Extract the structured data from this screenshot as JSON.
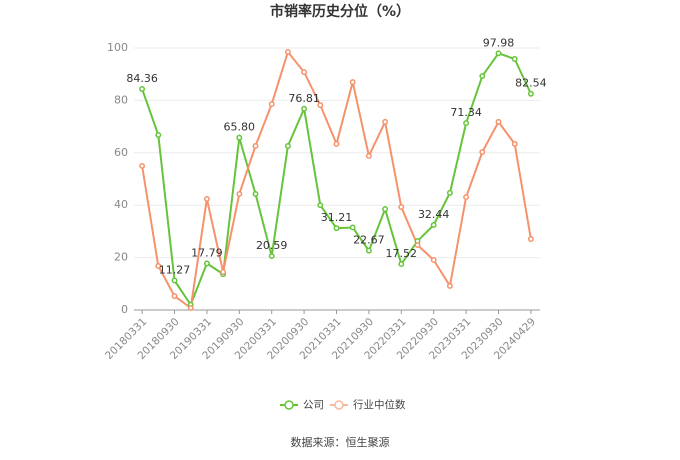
{
  "chart_data": {
    "type": "line",
    "title": "市销率历史分位（%）",
    "categories": [
      "20180331",
      null,
      "20180930",
      null,
      "20190331",
      null,
      "20190930",
      null,
      "20200331",
      null,
      "20200930",
      null,
      "20210331",
      null,
      "20210930",
      null,
      "20220331",
      null,
      "20220930",
      null,
      "20230331",
      null,
      "20230930",
      null,
      "20240429"
    ],
    "series": [
      {
        "name": "公司",
        "color": "#66c43a",
        "values": [
          84.36,
          66.8,
          11.27,
          2,
          17.79,
          13.7,
          65.8,
          44.3,
          20.59,
          62.6,
          76.81,
          40,
          31.21,
          31.5,
          22.67,
          38.5,
          17.52,
          26.3,
          32.44,
          44.7,
          71.34,
          89.3,
          97.98,
          95.8,
          82.54
        ],
        "value_labels": [
          "84.36",
          null,
          "11.27",
          null,
          "17.79",
          null,
          "65.80",
          null,
          "20.59",
          null,
          "76.81",
          null,
          "31.21",
          null,
          "22.67",
          null,
          "17.52",
          null,
          "32.44",
          null,
          "71.34",
          null,
          "97.98",
          null,
          "82.54"
        ]
      },
      {
        "name": "行业中位数",
        "color": "#f5926c",
        "values": [
          55,
          16.8,
          5.3,
          0.8,
          42.4,
          14.5,
          44.3,
          62.6,
          78.6,
          98.5,
          90.8,
          78.2,
          63.4,
          87,
          58.8,
          71.8,
          39.3,
          24.8,
          19.1,
          9.2,
          43.1,
          60.3,
          71.8,
          63.4,
          27.1
        ]
      }
    ],
    "ylim": [
      0,
      100
    ],
    "yticks": [
      0,
      20,
      40,
      60,
      80,
      100
    ],
    "grid": true,
    "source": "数据来源：恒生聚源"
  }
}
